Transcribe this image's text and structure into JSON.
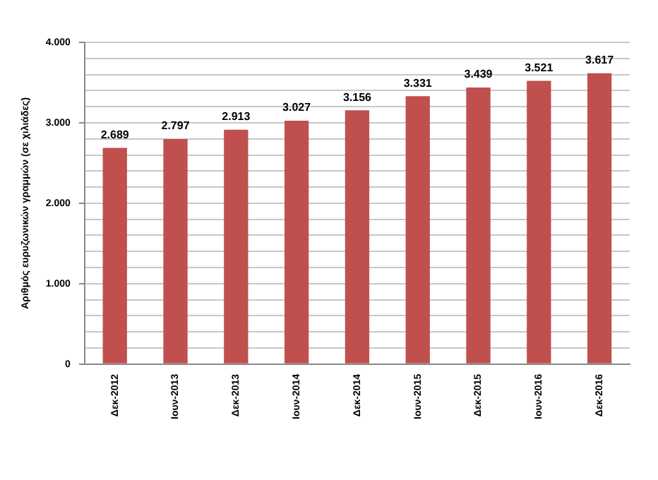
{
  "chart_data": {
    "type": "bar",
    "ylabel": "Αριθμός ευρυζωνικών γραμμών (σε χιλιάδες)",
    "categories": [
      "Δεκ-2012",
      "Ιουν-2013",
      "Δεκ-2013",
      "Ιουν-2014",
      "Δεκ-2014",
      "Ιουν-2015",
      "Δεκ-2015",
      "Ιουν-2016",
      "Δεκ-2016"
    ],
    "values": [
      2689,
      2797,
      2913,
      3027,
      3156,
      3331,
      3439,
      3521,
      3617
    ],
    "value_labels": [
      "2.689",
      "2.797",
      "2.913",
      "3.027",
      "3.156",
      "3.331",
      "3.439",
      "3.521",
      "3.617"
    ],
    "color": "#c0504d",
    "ylim": [
      0,
      4000
    ],
    "yticks": [
      {
        "value": 0,
        "label": "0"
      },
      {
        "value": 200,
        "label": null
      },
      {
        "value": 400,
        "label": null
      },
      {
        "value": 600,
        "label": null
      },
      {
        "value": 800,
        "label": null
      },
      {
        "value": 1000,
        "label": "1.000"
      },
      {
        "value": 1200,
        "label": null
      },
      {
        "value": 1400,
        "label": null
      },
      {
        "value": 1600,
        "label": null
      },
      {
        "value": 1800,
        "label": null
      },
      {
        "value": 2000,
        "label": "2.000"
      },
      {
        "value": 2200,
        "label": null
      },
      {
        "value": 2400,
        "label": null
      },
      {
        "value": 2600,
        "label": null
      },
      {
        "value": 2800,
        "label": null
      },
      {
        "value": 3000,
        "label": "3.000"
      },
      {
        "value": 3200,
        "label": null
      },
      {
        "value": 3400,
        "label": null
      },
      {
        "value": 3600,
        "label": null
      },
      {
        "value": 3800,
        "label": null
      },
      {
        "value": 4000,
        "label": "4.000"
      }
    ],
    "grid": "y",
    "legend": false
  }
}
